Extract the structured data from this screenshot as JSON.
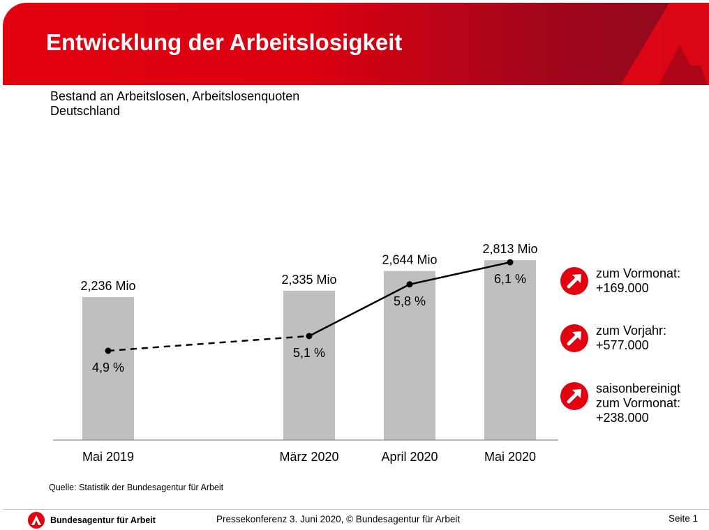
{
  "header": {
    "title": "Entwicklung der Arbeitslosigkeit"
  },
  "subtitle": {
    "line1": "Bestand an Arbeitslosen, Arbeitslosenquoten",
    "line2": "Deutschland"
  },
  "chart_data": {
    "type": "bar",
    "categories": [
      "Mai 2019",
      "März 2020",
      "April 2020",
      "Mai 2020"
    ],
    "series": [
      {
        "values": [
          2.236,
          2.335,
          2.644,
          2.813
        ],
        "value_labels": [
          "2,236 Mio",
          "2,335 Mio",
          "2,644 Mio",
          "2,813 Mio"
        ]
      },
      {
        "values": [
          4.9,
          5.1,
          5.8,
          6.1
        ],
        "value_labels": [
          "4,9 %",
          "5,1 %",
          "5,8 %",
          "6,1 %"
        ]
      }
    ],
    "bar_color": "#c0bfbf",
    "line_color": "#000000",
    "line_style": "dashed between Mai 2019 and März 2020, solid afterwards"
  },
  "stats": [
    {
      "text": "zum Vormonat:\n+169.000",
      "icon": "arrow-up-right-icon"
    },
    {
      "text": "zum Vorjahr:\n+577.000",
      "icon": "arrow-up-right-icon"
    },
    {
      "text": "saisonbereinigt\nzum Vormonat:\n+238.000",
      "icon": "arrow-up-right-icon"
    }
  ],
  "source": "Quelle: Statistik der Bundesagentur für Arbeit",
  "footer": {
    "org": "Bundesagentur für Arbeit",
    "center": "Pressekonferenz 3. Juni 2020, © Bundesagentur für Arbeit",
    "page": "Seite 1"
  },
  "colors": {
    "brand_red": "#e3000f",
    "dark_red": "#8d0b1e"
  }
}
